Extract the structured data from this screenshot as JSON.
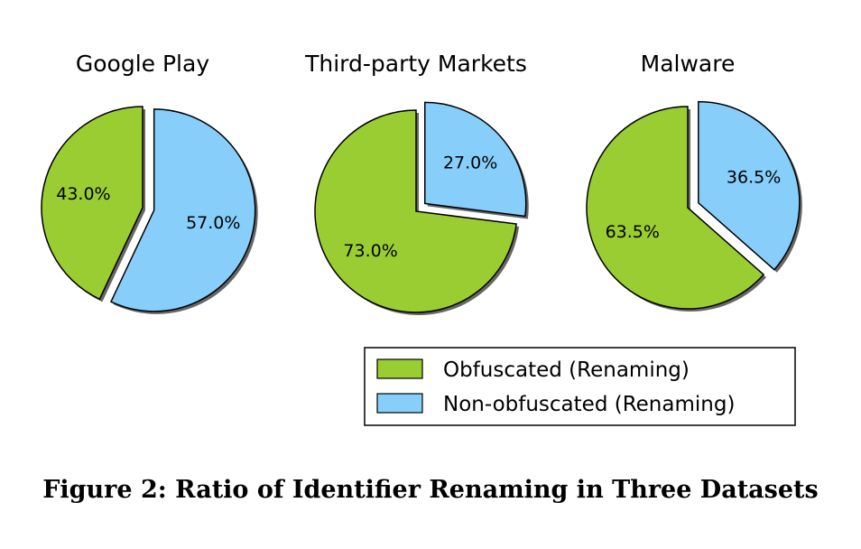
{
  "chart_data": [
    {
      "type": "pie",
      "title": "Google Play",
      "slices": [
        {
          "name": "Obfuscated (Renaming)",
          "value": 43.0,
          "label": "43.0%",
          "exploded": false
        },
        {
          "name": "Non-obfuscated (Renaming)",
          "value": 57.0,
          "label": "57.0%",
          "exploded": true
        }
      ]
    },
    {
      "type": "pie",
      "title": "Third-party Markets",
      "slices": [
        {
          "name": "Obfuscated (Renaming)",
          "value": 73.0,
          "label": "73.0%",
          "exploded": false
        },
        {
          "name": "Non-obfuscated (Renaming)",
          "value": 27.0,
          "label": "27.0%",
          "exploded": true
        }
      ]
    },
    {
      "type": "pie",
      "title": "Malware",
      "slices": [
        {
          "name": "Obfuscated (Renaming)",
          "value": 63.5,
          "label": "63.5%",
          "exploded": false
        },
        {
          "name": "Non-obfuscated (Renaming)",
          "value": 36.5,
          "label": "36.5%",
          "exploded": true
        }
      ]
    }
  ],
  "legend": {
    "placement": "bottom-right",
    "items": [
      {
        "label": "Obfuscated (Renaming)",
        "color": "#9acd32"
      },
      {
        "label": "Non-obfuscated (Renaming)",
        "color": "#87cefa"
      }
    ]
  },
  "colors": {
    "obfuscated": "#9acd32",
    "non_obfuscated": "#87cefa",
    "shadow": "#666666"
  },
  "caption": "Figure 2: Ratio of Identifier Renaming in Three Datasets"
}
